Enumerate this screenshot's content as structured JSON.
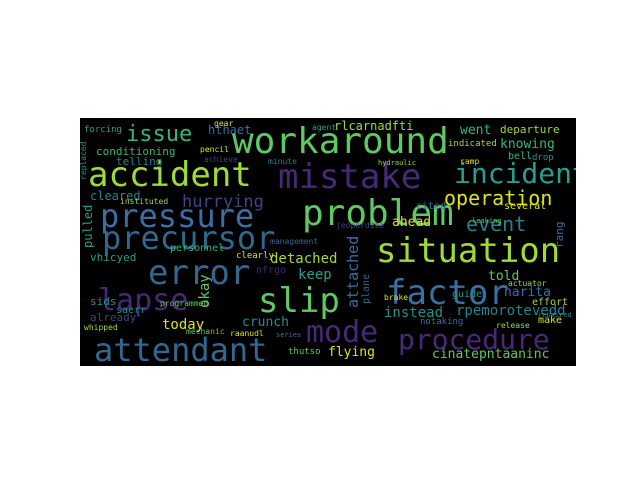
{
  "cloud": {
    "background": "#000000",
    "words": {
      "workaround": "workaround",
      "accident": "accident",
      "mistake": "mistake",
      "incident": "incident",
      "pressure": "pressure",
      "problem": "problem",
      "precursor": "precursor",
      "situation": "situation",
      "error": "error",
      "lapse": "lapse",
      "slip": "slip",
      "factor": "factor",
      "attendant": "attendant",
      "mode": "mode",
      "procedure": "procedure",
      "issue": "issue",
      "operation": "operation",
      "event": "event",
      "hurrying": "hurrying",
      "detached": "detached",
      "ahead": "ahead",
      "keep": "keep",
      "told": "told",
      "narita": "narita",
      "instead": "instead",
      "rpemorotevedd": "rpemorotevedd",
      "today": "today",
      "crunch": "crunch",
      "flying": "flying",
      "cinatepntaaninc": "cinatepntaaninc",
      "hthaet": "hthaet",
      "rlcarnadfti": "rlcarnadfti",
      "went": "went",
      "departure": "departure",
      "knowing": "knowing",
      "conditioning": "conditioning",
      "telling": "telling",
      "cleared": "cleared",
      "okay": "okay",
      "attached": "attached",
      "pulled": "pulled",
      "vhicyed": "vhicyed",
      "sids": "sids",
      "already": "already",
      "nfrgo": "nfrgo",
      "guide": "guide",
      "make": "make",
      "effort": "effort",
      "several": "several",
      "cited": "cited",
      "thutso": "thutso",
      "saerr": "saerr",
      "clearly": "clearly",
      "personnel": "personnel",
      "plane": "plane",
      "notaking": "notaking",
      "forcing": "forcing",
      "bell": "bell",
      "rang": "rang",
      "indicated": "indicated",
      "drop": "drop",
      "mechanic": "mechanic",
      "whipped": "whipped",
      "minute": "minute",
      "instituted": "instituted",
      "achieve": "achieve",
      "management": "management",
      "pencil": "pencil",
      "agent": "agent",
      "gear": "gear",
      "ramp": "ramp",
      "brake": "brake",
      "release": "release",
      "actuator": "actuator",
      "repaired": "repaired",
      "leaking": "leaking",
      "programmed": "programmed",
      "raanudl": "raanudl",
      "series": "series",
      "jeopardize": "jeopardize",
      "replaced": "replaced",
      "hydraulic": "hydraulic"
    },
    "colors": {
      "green": "#5ec962",
      "lime": "#a0da39",
      "yellow": "#dde318",
      "teal": "#2a9d8f",
      "tealdk": "#21918c",
      "blue": "#3b6ea5",
      "steel": "#31688e",
      "indigo": "#414487",
      "purple": "#482878",
      "darkpurple": "#440154",
      "sea": "#35b779",
      "cyan": "#26828e"
    }
  }
}
